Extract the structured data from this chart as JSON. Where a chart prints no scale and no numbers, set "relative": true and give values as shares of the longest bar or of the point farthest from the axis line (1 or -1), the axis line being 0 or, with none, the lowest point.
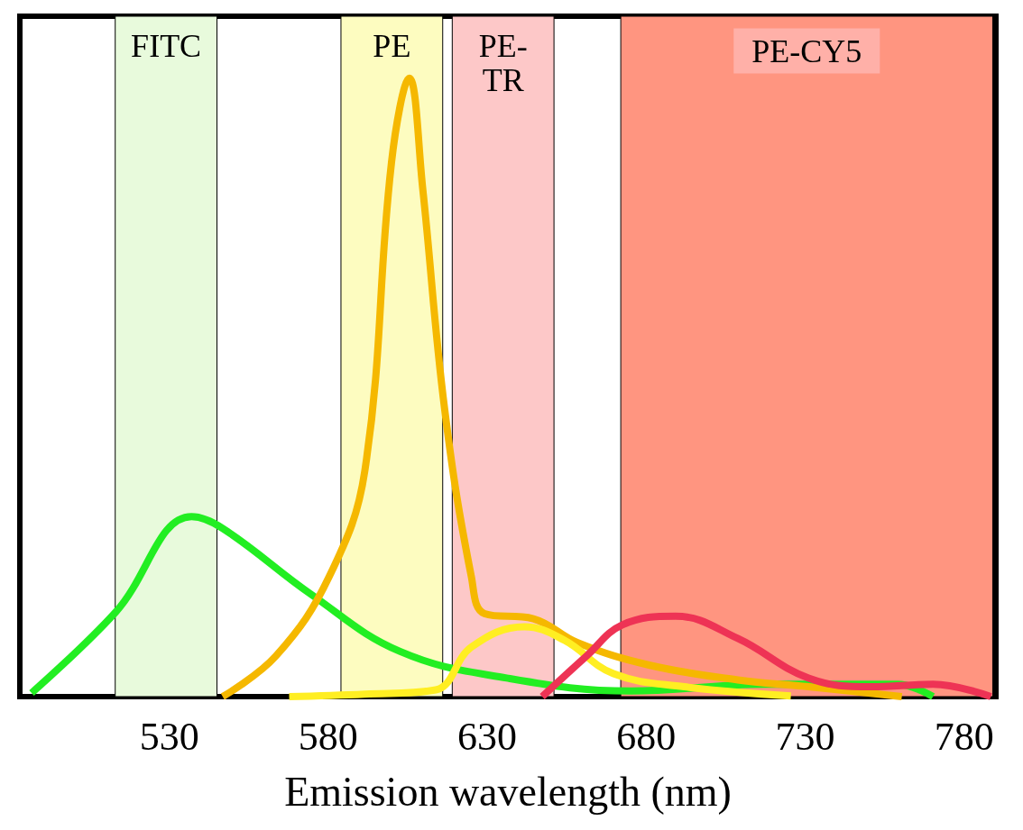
{
  "chart_data": {
    "type": "line",
    "relative": true,
    "xlabel": "Emission wavelength (nm)",
    "xlim": [
      483,
      790
    ],
    "xticks": [
      530,
      580,
      630,
      680,
      730,
      780
    ],
    "grid": false,
    "marker": "none",
    "line_style": "solid",
    "series": [
      {
        "color": "#22ee22",
        "x": [
          486.7,
          513.2,
          537,
          546.8,
          574.7,
          602.6,
          636.1,
          675.3,
          717.2,
          759,
          770.2
        ],
        "values": [
          0.006,
          0.137,
          0.291,
          0.272,
          0.165,
          0.073,
          0.03,
          0.009,
          0.02,
          0.02,
          0
        ]
      },
      {
        "color": "#f5b800",
        "x": [
          546.8,
          563.6,
          580.3,
          591.5,
          599.9,
          605.5,
          609.7,
          616.6,
          625,
          629.2,
          644.5,
          658.5,
          680.9,
          708.8,
          731.1,
          760.4
        ],
        "values": [
          0,
          0.066,
          0.194,
          0.365,
          0.864,
          1,
          0.822,
          0.465,
          0.194,
          0.134,
          0.126,
          0.087,
          0.051,
          0.027,
          0.016,
          0
        ]
      },
      {
        "color": "#ffee22",
        "x": [
          567.7,
          591.5,
          613.8,
          625,
          641.7,
          654.3,
          669.7,
          692,
          725.5
        ],
        "values": [
          0,
          0.004,
          0.011,
          0.08,
          0.113,
          0.091,
          0.037,
          0.016,
          0.001
        ]
      },
      {
        "color": "#ee3355",
        "x": [
          647.3,
          661.3,
          672.5,
          689.2,
          708.8,
          731.1,
          750.7,
          770.2,
          788.4
        ],
        "values": [
          0,
          0.066,
          0.116,
          0.13,
          0.094,
          0.03,
          0.016,
          0.02,
          0
        ]
      }
    ],
    "bands": [
      {
        "axis": "x",
        "from": 513,
        "to": 545,
        "label": "FITC",
        "color": "#e8fadc"
      },
      {
        "axis": "x",
        "from": 584,
        "to": 616,
        "label": "PE",
        "color": "#fdfcc0"
      },
      {
        "axis": "x",
        "from": 619,
        "to": 651,
        "label": "PE-TR",
        "color": "#fdc8c8"
      },
      {
        "axis": "x",
        "from": 672,
        "to": 789,
        "label": "PE-CY5",
        "color": "#ff9580"
      }
    ]
  }
}
